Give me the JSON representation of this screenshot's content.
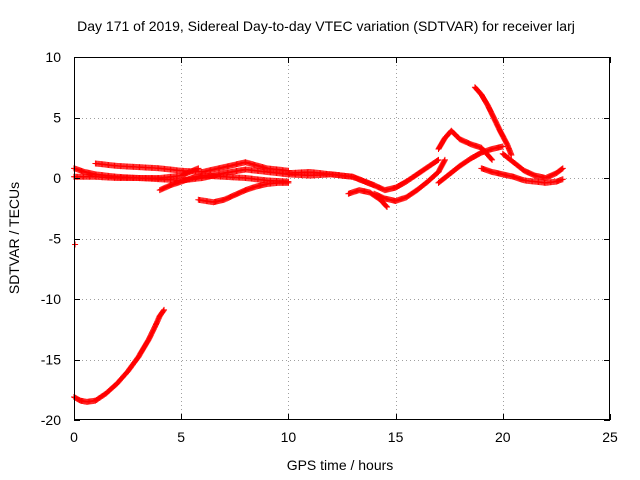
{
  "chart_data": {
    "type": "scatter",
    "title": "Day 171 of 2019, Sidereal Day-to-day VTEC variation (SDTVAR) for receiver larj",
    "xlabel": "GPS time / hours",
    "ylabel": "SDTVAR / TECUs",
    "xlim": [
      0,
      25
    ],
    "ylim": [
      -20,
      10
    ],
    "xticks": [
      0,
      5,
      10,
      15,
      20,
      25
    ],
    "yticks": [
      -20,
      -15,
      -10,
      -5,
      0,
      5,
      10
    ],
    "grid": true,
    "marker": "plus",
    "color": "#ff0000",
    "series": [
      {
        "name": "arc-early-negative",
        "x": [
          0.0,
          0.3,
          0.6,
          1.0,
          1.5,
          2.0,
          2.5,
          3.0,
          3.5,
          3.8,
          4.0,
          4.2
        ],
        "y": [
          -18.1,
          -18.4,
          -18.5,
          -18.4,
          -17.8,
          -17.0,
          -16.0,
          -14.8,
          -13.3,
          -12.2,
          -11.4,
          -10.9
        ]
      },
      {
        "name": "isolated-point",
        "x": [
          0.05
        ],
        "y": [
          -5.5
        ]
      },
      {
        "name": "arc-a",
        "x": [
          0.0,
          0.5,
          1.0,
          2.0,
          3.0,
          4.0,
          5.0,
          6.0,
          7.0,
          8.0,
          9.0,
          10.0,
          11.0,
          12.0,
          13.0,
          14.0
        ],
        "y": [
          0.8,
          0.5,
          0.3,
          0.1,
          0.0,
          -0.1,
          -0.2,
          0.0,
          0.4,
          0.7,
          0.5,
          0.3,
          0.2,
          0.3,
          0.1,
          -0.6
        ]
      },
      {
        "name": "arc-b",
        "x": [
          0.0,
          1.0,
          2.0,
          3.0,
          4.0,
          5.0,
          5.8
        ],
        "y": [
          0.1,
          0.1,
          0.0,
          0.0,
          0.0,
          0.2,
          0.8
        ]
      },
      {
        "name": "arc-c",
        "x": [
          1.0,
          2.0,
          3.0,
          4.0,
          5.0,
          6.0,
          7.0,
          8.0,
          9.0,
          10.0
        ],
        "y": [
          1.2,
          1.0,
          0.9,
          0.8,
          0.6,
          0.5,
          0.9,
          1.3,
          0.8,
          0.6
        ]
      },
      {
        "name": "arc-d",
        "x": [
          4.0,
          4.5,
          5.0,
          5.5,
          6.0,
          7.0,
          8.0,
          9.0,
          10.0
        ],
        "y": [
          -1.0,
          -0.6,
          -0.3,
          0.0,
          0.2,
          0.1,
          0.0,
          -0.2,
          -0.3
        ]
      },
      {
        "name": "arc-e",
        "x": [
          5.8,
          6.5,
          7.0,
          7.5,
          8.0,
          8.5,
          9.0,
          9.5,
          10.0
        ],
        "y": [
          -1.8,
          -2.0,
          -1.8,
          -1.4,
          -1.0,
          -0.7,
          -0.5,
          -0.4,
          -0.4
        ]
      },
      {
        "name": "arc-f",
        "x": [
          10.0,
          11.0,
          12.0,
          13.0,
          14.0,
          14.5,
          15.0,
          15.5,
          16.0,
          16.5,
          17.0
        ],
        "y": [
          0.4,
          0.5,
          0.3,
          0.1,
          -0.6,
          -1.0,
          -0.8,
          -0.3,
          0.3,
          0.9,
          1.5
        ]
      },
      {
        "name": "arc-g",
        "x": [
          12.8,
          13.3,
          13.8,
          14.3,
          14.6
        ],
        "y": [
          -1.3,
          -1.0,
          -1.2,
          -1.8,
          -2.4
        ]
      },
      {
        "name": "arc-h",
        "x": [
          14.0,
          14.5,
          15.0,
          15.5,
          16.0,
          16.5,
          17.0,
          17.3
        ],
        "y": [
          -1.3,
          -1.7,
          -1.9,
          -1.6,
          -1.0,
          -0.3,
          0.5,
          1.5
        ]
      },
      {
        "name": "arc-i",
        "x": [
          17.0,
          17.3,
          17.6,
          18.0,
          18.5,
          19.0,
          19.5
        ],
        "y": [
          2.4,
          3.3,
          3.9,
          3.2,
          2.8,
          2.5,
          1.5
        ]
      },
      {
        "name": "arc-j",
        "x": [
          17.0,
          17.5,
          18.0,
          18.5,
          19.0,
          19.5,
          20.0
        ],
        "y": [
          -0.4,
          0.3,
          1.0,
          1.6,
          2.1,
          2.4,
          2.6
        ]
      },
      {
        "name": "arc-k",
        "x": [
          18.7,
          19.0,
          19.3,
          19.6,
          19.9,
          20.2,
          20.4
        ],
        "y": [
          7.5,
          6.9,
          6.0,
          4.9,
          3.8,
          2.8,
          1.9
        ]
      },
      {
        "name": "arc-l",
        "x": [
          19.0,
          19.5,
          20.0,
          20.5,
          21.0,
          21.5,
          22.0,
          22.5,
          22.8
        ],
        "y": [
          0.8,
          0.5,
          0.3,
          0.1,
          -0.2,
          -0.3,
          -0.4,
          -0.3,
          -0.1
        ]
      },
      {
        "name": "arc-m",
        "x": [
          20.0,
          20.5,
          21.0,
          21.5,
          22.0,
          22.5,
          22.8
        ],
        "y": [
          2.0,
          1.3,
          0.6,
          0.2,
          0.0,
          0.4,
          0.8
        ]
      }
    ]
  }
}
